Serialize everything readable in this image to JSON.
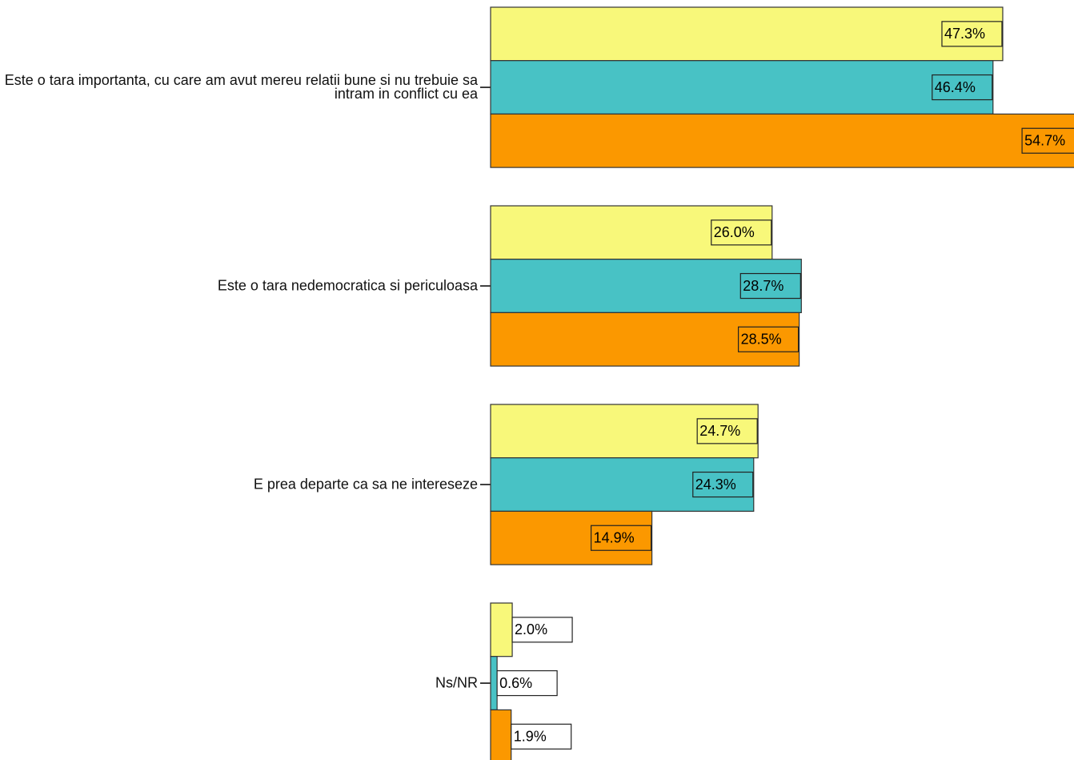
{
  "chart_data": {
    "type": "bar",
    "orientation": "horizontal",
    "categories": [
      "Este o tara importanta, cu care am avut mereu relatii bune si nu trebuie sa intram in conflict cu ea",
      "Este o tara nedemocratica si periculoasa",
      "E prea departe ca sa ne intereseze",
      "Ns/NR"
    ],
    "series": [
      {
        "color": "#f8f87a",
        "values": [
          47.3,
          26.0,
          24.7,
          2.0
        ],
        "value_labels": [
          "47.3%",
          "26.0%",
          "24.7%",
          "2.0%"
        ]
      },
      {
        "color": "#48c2c5",
        "values": [
          46.4,
          28.7,
          24.3,
          0.6
        ],
        "value_labels": [
          "46.4%",
          "28.7%",
          "24.3%",
          "0.6%"
        ]
      },
      {
        "color": "#fb9800",
        "values": [
          54.7,
          28.5,
          14.9,
          1.9
        ],
        "value_labels": [
          "54.7%",
          "28.5%",
          "14.9%",
          "1.9%"
        ]
      }
    ]
  }
}
